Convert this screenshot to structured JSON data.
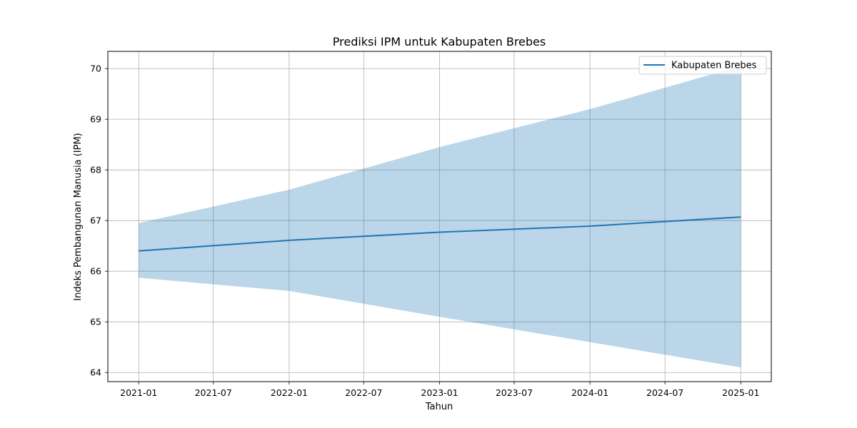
{
  "chart_data": {
    "type": "line",
    "title": "Prediksi IPM untuk Kabupaten Brebes",
    "xlabel": "Tahun",
    "ylabel": "Indeks Pembangunan Manusia (IPM)",
    "x_ticks": [
      "2021-01",
      "2021-07",
      "2022-01",
      "2022-07",
      "2023-01",
      "2023-07",
      "2024-01",
      "2024-07",
      "2025-01"
    ],
    "x_range": [
      "2020-10-18",
      "2025-03-16"
    ],
    "ylim": [
      63.82,
      70.34
    ],
    "y_ticks": [
      64,
      65,
      66,
      67,
      68,
      69,
      70
    ],
    "grid": true,
    "legend_position": "top-right",
    "series": [
      {
        "name": "Kabupaten Brebes",
        "color": "#1f77b4",
        "x": [
          "2021-01-01",
          "2022-01-01",
          "2023-01-01",
          "2024-01-01",
          "2025-01-01"
        ],
        "y": [
          66.4,
          66.61,
          66.77,
          66.89,
          67.07
        ]
      }
    ],
    "confidence_band": {
      "color": "#1f77b4",
      "opacity": 0.3,
      "x": [
        "2021-01-01",
        "2022-01-01",
        "2023-01-01",
        "2024-01-01",
        "2025-01-01"
      ],
      "lower": [
        65.87,
        65.61,
        65.1,
        64.6,
        64.1
      ],
      "upper": [
        66.95,
        67.61,
        68.45,
        69.2,
        70.05
      ]
    }
  }
}
